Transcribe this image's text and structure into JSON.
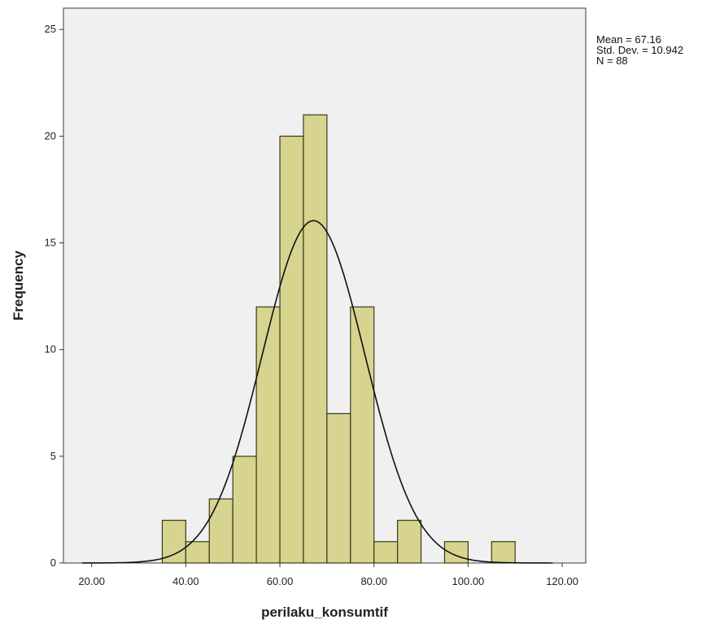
{
  "chart_data": {
    "type": "histogram",
    "xlabel": "perilaku_konsumtif",
    "ylabel": "Frequency",
    "xlim": [
      14,
      125
    ],
    "ylim": [
      0,
      26
    ],
    "x_ticks": [
      "20.00",
      "40.00",
      "60.00",
      "80.00",
      "100.00",
      "120.00"
    ],
    "x_tick_values": [
      20,
      40,
      60,
      80,
      100,
      120
    ],
    "y_ticks": [
      "0",
      "5",
      "10",
      "15",
      "20",
      "25"
    ],
    "y_tick_values": [
      0,
      5,
      10,
      15,
      20,
      25
    ],
    "bin_width": 5,
    "bins": [
      {
        "start": 35,
        "end": 40,
        "count": 2
      },
      {
        "start": 40,
        "end": 45,
        "count": 1
      },
      {
        "start": 45,
        "end": 50,
        "count": 3
      },
      {
        "start": 50,
        "end": 55,
        "count": 5
      },
      {
        "start": 55,
        "end": 60,
        "count": 12
      },
      {
        "start": 60,
        "end": 65,
        "count": 20
      },
      {
        "start": 65,
        "end": 70,
        "count": 21
      },
      {
        "start": 70,
        "end": 75,
        "count": 7
      },
      {
        "start": 75,
        "end": 80,
        "count": 12
      },
      {
        "start": 80,
        "end": 85,
        "count": 1
      },
      {
        "start": 85,
        "end": 90,
        "count": 2
      },
      {
        "start": 90,
        "end": 95,
        "count": 0
      },
      {
        "start": 95,
        "end": 100,
        "count": 1
      },
      {
        "start": 100,
        "end": 105,
        "count": 0
      },
      {
        "start": 105,
        "end": 110,
        "count": 1
      }
    ],
    "normal_curve": {
      "mean": 67.16,
      "std": 10.942,
      "n": 88
    },
    "colors": {
      "bar_fill": "#d6d48f",
      "bar_stroke": "#3a3a1a",
      "plot_bg": "#f0f0f0",
      "curve": "#111111"
    }
  },
  "stats": {
    "mean_line": "Mean = 67.16",
    "std_line": "Std. Dev. = 10.942",
    "n_line": "N = 88"
  }
}
